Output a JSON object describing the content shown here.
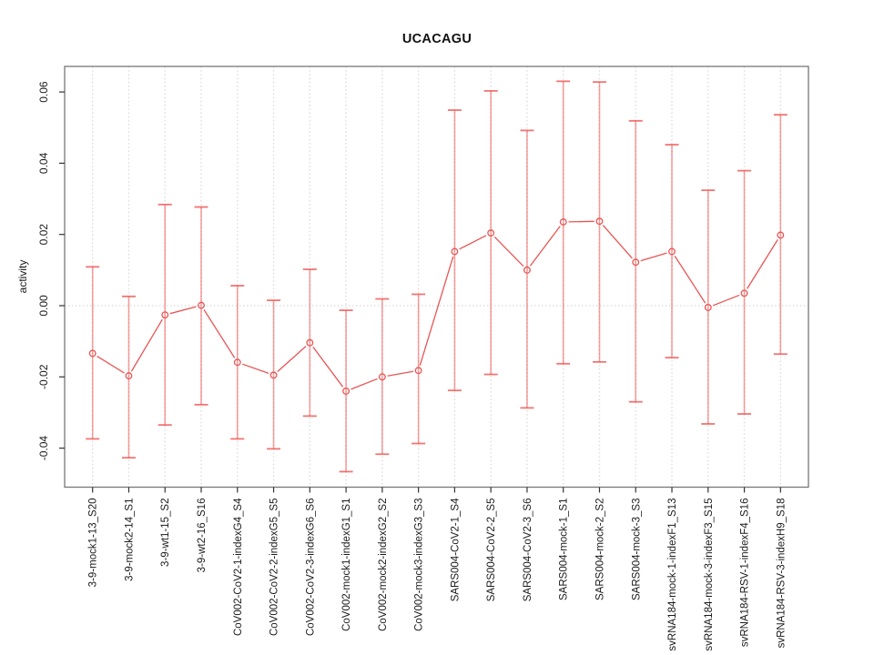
{
  "chart_data": {
    "type": "line",
    "title": "UCACAGU",
    "ylabel": "activity",
    "xlabel": "",
    "grid": "vertical dotted gridline per category, dotted horizontal line at zero",
    "legend_position": "none",
    "ylim": [
      -0.051,
      0.067
    ],
    "y_tick_values": [
      -0.04,
      -0.02,
      0.0,
      0.02,
      0.04,
      0.06
    ],
    "y_tick_labels": [
      "-0.04",
      "-0.02",
      "0.00",
      "0.02",
      "0.04",
      "0.06"
    ],
    "categories": [
      "3-9-mock1-13_S20",
      "3-9-mock2-14_S1",
      "3-9-wt1-15_S2",
      "3-9-wt2-16_S16",
      "CoV002-CoV2-1-indexG4_S4",
      "CoV002-CoV2-2-indexG5_S5",
      "CoV002-CoV2-3-indexG6_S6",
      "CoV002-mock1-indexG1_S1",
      "CoV002-mock2-indexG2_S2",
      "CoV002-mock3-indexG3_S3",
      "SARS004-CoV2-1_S4",
      "SARS004-CoV2-2_S5",
      "SARS004-CoV2-3_S6",
      "SARS004-mock-1_S1",
      "SARS004-mock-2_S2",
      "SARS004-mock-3_S3",
      "svRNA184-mock-1-indexF1_S13",
      "svRNA184-mock-3-indexF3_S15",
      "svRNA184-RSV-1-indexF4_S16",
      "svRNA184-RSV-3-indexH9_S18"
    ],
    "series": [
      {
        "name": "activity",
        "values": [
          -0.0134,
          -0.0197,
          -0.0026,
          0.0001,
          -0.0159,
          -0.0195,
          -0.0104,
          -0.024,
          -0.02,
          -0.0182,
          0.0152,
          0.0204,
          0.01,
          0.0235,
          0.0237,
          0.0122,
          0.0152,
          -0.0005,
          0.0035,
          0.0198
        ],
        "lower": [
          -0.0374,
          -0.0427,
          -0.0335,
          -0.0278,
          -0.0374,
          -0.0402,
          -0.031,
          -0.0466,
          -0.0417,
          -0.0387,
          -0.0238,
          -0.0193,
          -0.0287,
          -0.0163,
          -0.0158,
          -0.027,
          -0.0146,
          -0.0332,
          -0.0304,
          -0.0136
        ],
        "upper": [
          0.0109,
          0.0026,
          0.0284,
          0.0277,
          0.0056,
          0.0015,
          0.0102,
          -0.0013,
          0.0019,
          0.0032,
          0.0549,
          0.0603,
          0.0492,
          0.063,
          0.0628,
          0.0519,
          0.0452,
          0.0324,
          0.0379,
          0.0536
        ]
      }
    ],
    "colors": {
      "point_line": "#e85555",
      "error_bar": "rgba(239,83,80,0.55)",
      "error_bar_cap": "rgba(239,83,80,0.8)",
      "grid": "#dedede",
      "zero_line": "#cccccc",
      "axis_box": "#777777",
      "tick": "#333333",
      "text": "#1a1a1a",
      "background": "#ffffff"
    }
  }
}
